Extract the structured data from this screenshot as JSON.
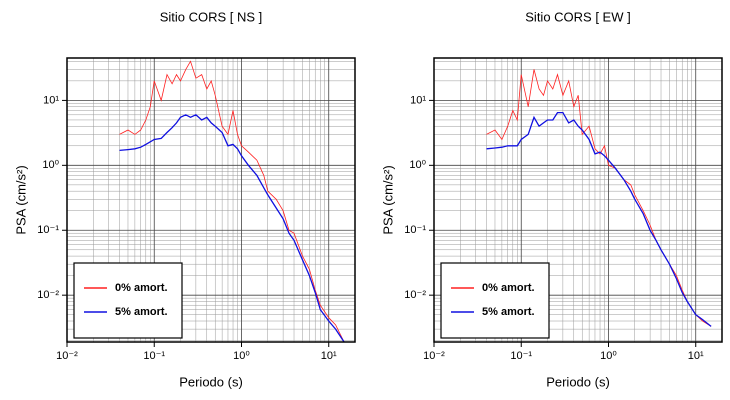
{
  "chart_data": [
    {
      "type": "line",
      "title": "Sitio CORS [ NS ]",
      "x_label": "Periodo (s)",
      "y_label": "PSA (cm/s²)",
      "x": [
        0.04,
        0.05,
        0.06,
        0.07,
        0.08,
        0.09,
        0.1,
        0.12,
        0.14,
        0.16,
        0.18,
        0.2,
        0.23,
        0.26,
        0.3,
        0.35,
        0.4,
        0.45,
        0.5,
        0.6,
        0.7,
        0.8,
        0.9,
        1.0,
        1.2,
        1.5,
        1.8,
        2.0,
        2.5,
        3,
        3.5,
        4,
        5,
        6,
        7,
        8,
        10,
        12,
        15
      ],
      "series": [
        {
          "name": "0% amort.",
          "color": "#ff2020",
          "values": [
            3,
            3.5,
            3,
            3.5,
            5,
            8,
            20,
            10,
            25,
            18,
            25,
            20,
            30,
            40,
            22,
            25,
            15,
            20,
            12,
            4,
            3,
            7,
            3,
            2,
            1.6,
            1.2,
            0.7,
            0.4,
            0.3,
            0.2,
            0.1,
            0.09,
            0.04,
            0.025,
            0.012,
            0.007,
            0.0045,
            0.0035,
            0.0019
          ]
        },
        {
          "name": "5% amort.",
          "color": "#1010e0",
          "values": [
            1.7,
            1.75,
            1.8,
            1.9,
            2.1,
            2.3,
            2.5,
            2.6,
            3.2,
            3.8,
            4.5,
            5.5,
            6,
            5.5,
            6,
            5,
            5.5,
            4.5,
            4,
            3.2,
            2,
            2.1,
            1.8,
            1.4,
            1,
            0.7,
            0.45,
            0.35,
            0.22,
            0.15,
            0.09,
            0.07,
            0.035,
            0.02,
            0.011,
            0.006,
            0.004,
            0.003,
            0.0019
          ]
        }
      ],
      "xlog": true,
      "ylog": true,
      "xlim": [
        0.01,
        20
      ],
      "ylim": [
        0.0019,
        45
      ],
      "xticks": [
        {
          "value": 0.01,
          "label": "10⁻²"
        },
        {
          "value": 0.1,
          "label": "10⁻¹"
        },
        {
          "value": 1,
          "label": "10⁰"
        },
        {
          "value": 10,
          "label": "10¹"
        }
      ],
      "yticks": [
        {
          "value": 0.01,
          "label": "10⁻²"
        },
        {
          "value": 0.1,
          "label": "10⁻¹"
        },
        {
          "value": 1,
          "label": "10⁰"
        },
        {
          "value": 10,
          "label": "10¹"
        }
      ],
      "grid": true,
      "legend": "lower left"
    },
    {
      "type": "line",
      "title": "Sitio CORS [ EW ]",
      "x_label": "Periodo (s)",
      "y_label": "PSA (cm/s²)",
      "x": [
        0.04,
        0.05,
        0.06,
        0.07,
        0.08,
        0.09,
        0.1,
        0.12,
        0.14,
        0.16,
        0.18,
        0.2,
        0.23,
        0.26,
        0.3,
        0.35,
        0.4,
        0.45,
        0.5,
        0.6,
        0.7,
        0.8,
        0.9,
        1.0,
        1.2,
        1.5,
        1.8,
        2.0,
        2.5,
        3,
        3.5,
        4,
        5,
        6,
        7,
        8,
        10,
        12,
        15
      ],
      "series": [
        {
          "name": "0% amort.",
          "color": "#ff2020",
          "values": [
            3,
            3.5,
            2.5,
            4,
            7,
            5,
            25,
            8,
            30,
            15,
            12,
            20,
            15,
            25,
            12,
            20,
            8,
            12,
            3,
            4,
            1.8,
            1.5,
            2,
            1,
            0.9,
            0.6,
            0.5,
            0.35,
            0.2,
            0.12,
            0.07,
            0.05,
            0.03,
            0.02,
            0.012,
            0.008,
            0.005,
            0.004,
            0.0033
          ]
        },
        {
          "name": "5% amort.",
          "color": "#1010e0",
          "values": [
            1.8,
            1.85,
            1.9,
            2,
            2,
            2,
            2.5,
            3,
            5.5,
            4,
            4.5,
            5,
            5,
            6.5,
            6.5,
            4.5,
            5,
            4,
            3.5,
            2.5,
            1.5,
            1.6,
            1.4,
            1.2,
            0.9,
            0.6,
            0.4,
            0.3,
            0.18,
            0.1,
            0.07,
            0.05,
            0.03,
            0.018,
            0.011,
            0.008,
            0.005,
            0.0042,
            0.0033
          ]
        }
      ],
      "xlog": true,
      "ylog": true,
      "xlim": [
        0.01,
        20
      ],
      "ylim": [
        0.0019,
        45
      ],
      "xticks": [
        {
          "value": 0.01,
          "label": "10⁻²"
        },
        {
          "value": 0.1,
          "label": "10⁻¹"
        },
        {
          "value": 1,
          "label": "10⁰"
        },
        {
          "value": 10,
          "label": "10¹"
        }
      ],
      "yticks": [
        {
          "value": 0.01,
          "label": "10⁻²"
        },
        {
          "value": 0.1,
          "label": "10⁻¹"
        },
        {
          "value": 1,
          "label": "10⁰"
        },
        {
          "value": 10,
          "label": "10¹"
        }
      ],
      "grid": true,
      "legend": "lower left"
    }
  ]
}
